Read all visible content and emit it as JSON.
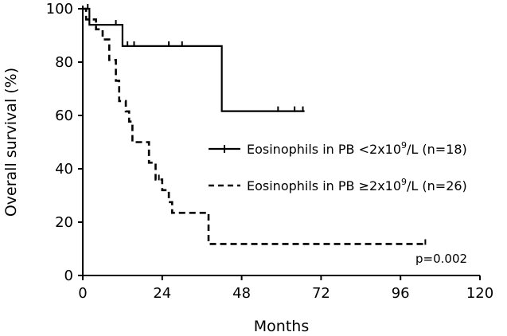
{
  "chart_data": {
    "type": "line",
    "xlabel": "Months",
    "ylabel": "Overall survival (%)",
    "xlim": [
      0,
      120
    ],
    "ylim": [
      0,
      100
    ],
    "xticks": [
      0,
      24,
      48,
      72,
      96,
      120
    ],
    "yticks": [
      0,
      20,
      40,
      60,
      80,
      100
    ],
    "grid": false,
    "legend_position": "center-right",
    "annotation": "p=0.002",
    "series": [
      {
        "name": "Eosinophils in PB <2x10⁹/L (n=18)",
        "legend_main": "Eosinophils in PB <2x10",
        "legend_sup": "9",
        "legend_tail": "/L (n=18)",
        "style": "solid",
        "steps": [
          [
            0,
            100
          ],
          [
            2,
            94
          ],
          [
            12,
            86
          ],
          [
            42,
            61.6
          ],
          [
            67,
            61.6
          ]
        ],
        "censored": [
          1.5,
          10,
          13.5,
          15.5,
          26,
          30,
          59,
          64,
          66.5
        ]
      },
      {
        "name": "Eosinophils in PB ≥2x10⁹/L (n=26)",
        "legend_main": "Eosinophils in PB ≥2x10",
        "legend_sup": "9",
        "legend_tail": "/L (n=26)",
        "style": "dashed",
        "steps": [
          [
            0,
            100
          ],
          [
            1,
            96
          ],
          [
            4,
            92.3
          ],
          [
            6,
            88.5
          ],
          [
            8,
            80.8
          ],
          [
            10,
            73
          ],
          [
            11,
            65.4
          ],
          [
            13,
            61.5
          ],
          [
            14,
            57.7
          ],
          [
            15,
            50
          ],
          [
            20,
            42.3
          ],
          [
            22,
            36
          ],
          [
            24,
            32
          ],
          [
            26,
            27.5
          ],
          [
            27,
            23.5
          ],
          [
            38,
            11.8
          ],
          [
            104,
            11.8
          ]
        ],
        "censored": [
          4,
          23,
          103.5
        ]
      }
    ]
  }
}
